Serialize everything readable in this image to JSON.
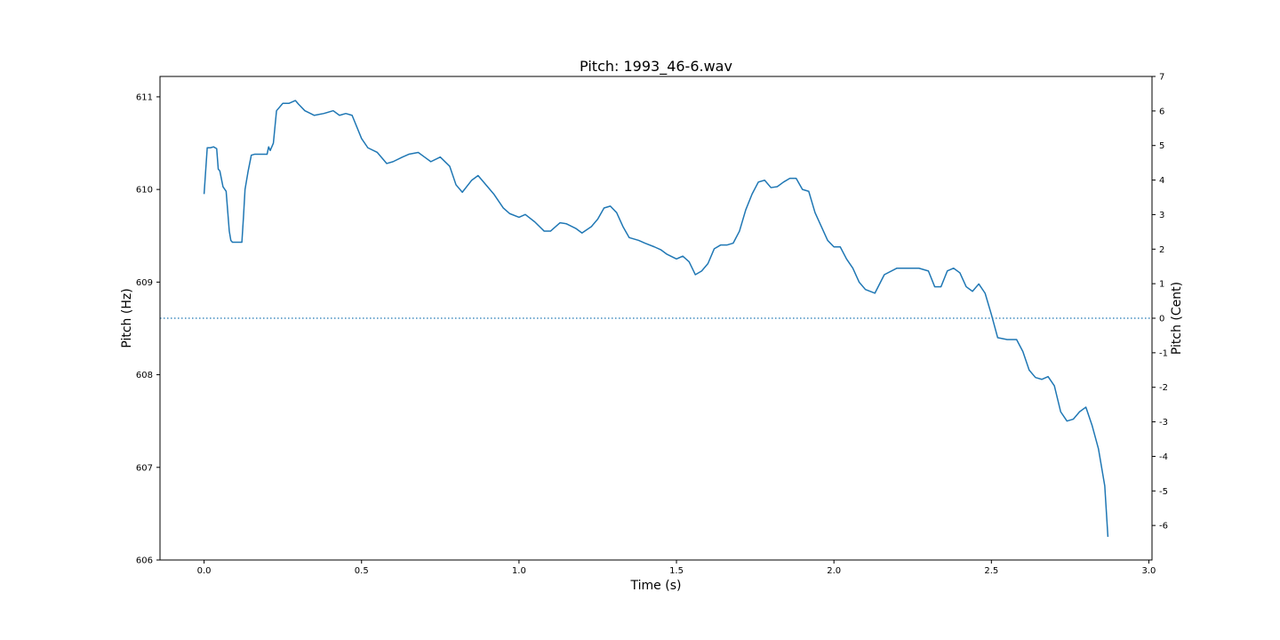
{
  "chart_data": {
    "type": "line",
    "title": "Pitch: 1993_46-6.wav",
    "xlabel": "Time (s)",
    "ylabel": "Pitch (Hz)",
    "y2label": "Pitch (Cent)",
    "xlim": [
      -0.14,
      3.01
    ],
    "ylim": [
      606.0,
      611.22
    ],
    "y2lim": [
      -7.0,
      7.0
    ],
    "grid": false,
    "x_ticks": [
      "0.0",
      "0.5",
      "1.0",
      "1.5",
      "2.0",
      "2.5",
      "3.0"
    ],
    "y_ticks": [
      "606",
      "607",
      "608",
      "609",
      "610",
      "611"
    ],
    "y2_ticks": [
      "-6",
      "-5",
      "-4",
      "-3",
      "-2",
      "-1",
      "0",
      "1",
      "2",
      "3",
      "4",
      "5",
      "6",
      "7"
    ],
    "reference_line": {
      "y_cent": 0,
      "style": "dotted"
    },
    "colors": {
      "line": "#1f77b4"
    },
    "series": [
      {
        "x": [
          0.0,
          0.01,
          0.02,
          0.03,
          0.04,
          0.045,
          0.05,
          0.06,
          0.07,
          0.08,
          0.085,
          0.09,
          0.095,
          0.1,
          0.11,
          0.12,
          0.125,
          0.13,
          0.14,
          0.15,
          0.16,
          0.18,
          0.2,
          0.205,
          0.21,
          0.22,
          0.23,
          0.25,
          0.27,
          0.29,
          0.3,
          0.32,
          0.35,
          0.38,
          0.41,
          0.43,
          0.45,
          0.47,
          0.5,
          0.52,
          0.55,
          0.58,
          0.6,
          0.63,
          0.65,
          0.68,
          0.7,
          0.72,
          0.75,
          0.78,
          0.8,
          0.82,
          0.85,
          0.87,
          0.9,
          0.92,
          0.95,
          0.97,
          1.0,
          1.02,
          1.05,
          1.08,
          1.1,
          1.13,
          1.15,
          1.18,
          1.2,
          1.23,
          1.25,
          1.27,
          1.29,
          1.31,
          1.33,
          1.35,
          1.38,
          1.4,
          1.43,
          1.45,
          1.47,
          1.5,
          1.52,
          1.54,
          1.56,
          1.58,
          1.6,
          1.62,
          1.64,
          1.66,
          1.68,
          1.7,
          1.72,
          1.74,
          1.76,
          1.78,
          1.8,
          1.82,
          1.84,
          1.86,
          1.88,
          1.9,
          1.92,
          1.94,
          1.96,
          1.98,
          2.0,
          2.02,
          2.04,
          2.06,
          2.08,
          2.1,
          2.13,
          2.16,
          2.2,
          2.24,
          2.27,
          2.3,
          2.32,
          2.34,
          2.36,
          2.38,
          2.4,
          2.42,
          2.44,
          2.46,
          2.48,
          2.5,
          2.52,
          2.55,
          2.58,
          2.6,
          2.62,
          2.64,
          2.66,
          2.68,
          2.7,
          2.72,
          2.74,
          2.76,
          2.78,
          2.8,
          2.82,
          2.84,
          2.86,
          2.87
        ],
        "y": [
          609.95,
          610.45,
          610.45,
          610.46,
          610.44,
          610.22,
          610.2,
          610.03,
          609.98,
          609.55,
          609.45,
          609.43,
          609.43,
          609.43,
          609.43,
          609.43,
          609.7,
          610.0,
          610.2,
          610.37,
          610.38,
          610.38,
          610.38,
          610.46,
          610.42,
          610.5,
          610.85,
          610.93,
          610.93,
          610.96,
          610.92,
          610.85,
          610.8,
          610.82,
          610.85,
          610.8,
          610.82,
          610.8,
          610.55,
          610.45,
          610.4,
          610.28,
          610.3,
          610.35,
          610.38,
          610.4,
          610.35,
          610.3,
          610.35,
          610.25,
          610.05,
          609.97,
          610.1,
          610.15,
          610.03,
          609.95,
          609.8,
          609.74,
          609.7,
          609.73,
          609.65,
          609.55,
          609.55,
          609.64,
          609.63,
          609.58,
          609.53,
          609.6,
          609.68,
          609.8,
          609.82,
          609.75,
          609.6,
          609.48,
          609.45,
          609.42,
          609.38,
          609.35,
          609.3,
          609.25,
          609.28,
          609.22,
          609.08,
          609.12,
          609.2,
          609.36,
          609.4,
          609.4,
          609.42,
          609.55,
          609.78,
          609.95,
          610.08,
          610.1,
          610.02,
          610.03,
          610.08,
          610.12,
          610.12,
          610.0,
          609.98,
          609.75,
          609.6,
          609.45,
          609.38,
          609.38,
          609.25,
          609.15,
          609.0,
          608.92,
          608.88,
          609.08,
          609.15,
          609.15,
          609.15,
          609.12,
          608.95,
          608.95,
          609.12,
          609.15,
          609.1,
          608.95,
          608.9,
          608.98,
          608.88,
          608.65,
          608.4,
          608.38,
          608.38,
          608.25,
          608.05,
          607.97,
          607.95,
          607.98,
          607.88,
          607.6,
          607.5,
          607.52,
          607.6,
          607.65,
          607.45,
          607.2,
          606.8,
          606.25
        ]
      }
    ]
  }
}
